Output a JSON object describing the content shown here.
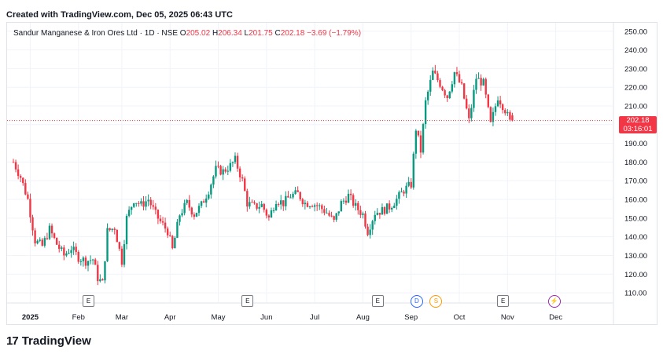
{
  "header": {
    "created_text": "Created with TradingView.com, Dec 05, 2025 06:43 UTC"
  },
  "legend": {
    "symbol": "Sandur Manganese & Iron Ores Ltd · 1D · NSE",
    "o_label": "O",
    "o_value": "205.02",
    "h_label": "H",
    "h_value": "206.34",
    "l_label": "L",
    "l_value": "201.75",
    "c_label": "C",
    "c_value": "202.18",
    "change": "−3.69 (−1.79%)"
  },
  "last_price": {
    "price": "202.18",
    "countdown": "03:16:01"
  },
  "footer": {
    "logo_text": "TradingView"
  },
  "colors": {
    "up": "#089981",
    "down": "#f23645",
    "axis_text": "#131722",
    "grid": "#f0f3fa",
    "price_line": "#f23645"
  },
  "event_markers": [
    {
      "label": "E",
      "month_index": 1.55,
      "type": "earnings"
    },
    {
      "label": "E",
      "month_index": 4.85,
      "type": "earnings"
    },
    {
      "label": "E",
      "month_index": 7.55,
      "type": "earnings"
    },
    {
      "label": "D",
      "month_index": 8.35,
      "type": "dividend"
    },
    {
      "label": "S",
      "month_index": 8.75,
      "type": "split"
    },
    {
      "label": "E",
      "month_index": 10.15,
      "type": "earnings"
    },
    {
      "label": "⚡",
      "month_index": 11.2,
      "type": "event"
    }
  ],
  "chart_data": {
    "type": "candlestick",
    "title": "",
    "ylabel": "",
    "y_ticks": [
      "110.00",
      "120.00",
      "130.00",
      "140.00",
      "150.00",
      "160.00",
      "170.00",
      "180.00",
      "190.00",
      "200.00",
      "210.00",
      "220.00",
      "230.00",
      "240.00",
      "250.00"
    ],
    "ylim": [
      105,
      252
    ],
    "x_tick_labels": [
      "2025",
      "Feb",
      "Mar",
      "Apr",
      "May",
      "Jun",
      "Jul",
      "Aug",
      "Sep",
      "Oct",
      "Nov",
      "Dec"
    ],
    "x_tick_month_index": [
      0.35,
      1.35,
      2.25,
      3.25,
      4.25,
      5.25,
      6.25,
      7.25,
      8.25,
      9.25,
      10.25,
      11.25
    ],
    "grid": true,
    "anchors": [
      [
        0.0,
        180
      ],
      [
        0.15,
        172
      ],
      [
        0.3,
        160
      ],
      [
        0.45,
        138
      ],
      [
        0.6,
        135
      ],
      [
        0.75,
        144
      ],
      [
        0.9,
        136
      ],
      [
        1.05,
        130
      ],
      [
        1.2,
        134
      ],
      [
        1.35,
        129
      ],
      [
        1.5,
        127
      ],
      [
        1.65,
        128
      ],
      [
        1.75,
        118
      ],
      [
        1.85,
        115
      ],
      [
        1.95,
        143
      ],
      [
        2.1,
        145
      ],
      [
        2.25,
        127
      ],
      [
        2.35,
        150
      ],
      [
        2.5,
        160
      ],
      [
        2.65,
        157
      ],
      [
        2.8,
        160
      ],
      [
        2.95,
        152
      ],
      [
        3.05,
        148
      ],
      [
        3.2,
        143
      ],
      [
        3.3,
        133
      ],
      [
        3.45,
        152
      ],
      [
        3.6,
        158
      ],
      [
        3.75,
        152
      ],
      [
        3.9,
        157
      ],
      [
        4.05,
        165
      ],
      [
        4.2,
        176
      ],
      [
        4.35,
        175
      ],
      [
        4.5,
        178
      ],
      [
        4.6,
        181
      ],
      [
        4.75,
        170
      ],
      [
        4.85,
        158
      ],
      [
        5.0,
        156
      ],
      [
        5.15,
        157
      ],
      [
        5.3,
        150
      ],
      [
        5.45,
        160
      ],
      [
        5.6,
        158
      ],
      [
        5.75,
        162
      ],
      [
        5.9,
        163
      ],
      [
        6.05,
        158
      ],
      [
        6.2,
        158
      ],
      [
        6.35,
        156
      ],
      [
        6.5,
        153
      ],
      [
        6.65,
        148
      ],
      [
        6.8,
        158
      ],
      [
        6.95,
        162
      ],
      [
        7.1,
        156
      ],
      [
        7.25,
        152
      ],
      [
        7.35,
        143
      ],
      [
        7.5,
        153
      ],
      [
        7.65,
        154
      ],
      [
        7.8,
        156
      ],
      [
        7.95,
        160
      ],
      [
        8.1,
        165
      ],
      [
        8.25,
        168
      ],
      [
        8.35,
        198
      ],
      [
        8.45,
        186
      ],
      [
        8.55,
        212
      ],
      [
        8.7,
        228
      ],
      [
        8.85,
        222
      ],
      [
        9.0,
        215
      ],
      [
        9.15,
        228
      ],
      [
        9.3,
        220
      ],
      [
        9.45,
        202
      ],
      [
        9.6,
        225
      ],
      [
        9.75,
        222
      ],
      [
        9.9,
        200
      ],
      [
        10.05,
        215
      ],
      [
        10.2,
        208
      ],
      [
        10.35,
        198
      ]
    ],
    "last_close": 202.18
  }
}
